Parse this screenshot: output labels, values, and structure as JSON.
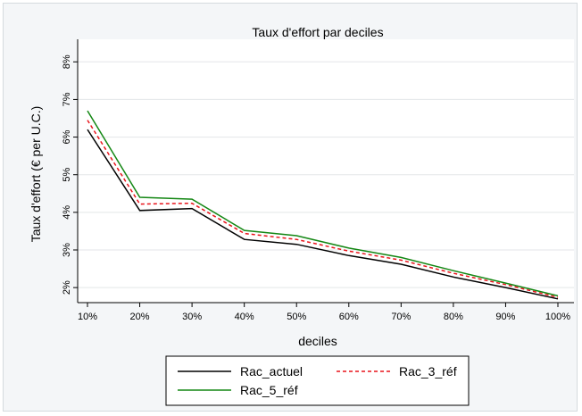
{
  "chart_data": {
    "type": "line",
    "title": "Taux d'effort par deciles",
    "xlabel": "deciles",
    "ylabel": "Taux d'effort (€ per U.C.)",
    "categories": [
      "10%",
      "20%",
      "30%",
      "40%",
      "50%",
      "60%",
      "70%",
      "80%",
      "90%",
      "100%"
    ],
    "yticks": [
      "2%",
      "3%",
      "4%",
      "5%",
      "6%",
      "7%",
      "8%"
    ],
    "ylim": [
      1.6,
      8.6
    ],
    "grid": true,
    "legend_position": "bottom",
    "series": [
      {
        "name": "Rac_actuel",
        "color": "#000000",
        "dash": "solid",
        "values": [
          6.2,
          4.05,
          4.1,
          3.28,
          3.15,
          2.85,
          2.62,
          2.28,
          2.0,
          1.7
        ]
      },
      {
        "name": "Rac_3_réf",
        "color": "#e8141b",
        "dash": "dashed",
        "values": [
          6.45,
          4.22,
          4.24,
          3.44,
          3.28,
          2.97,
          2.73,
          2.38,
          2.08,
          1.74
        ]
      },
      {
        "name": "Rac_5_réf",
        "color": "#148714",
        "dash": "solid",
        "values": [
          6.7,
          4.4,
          4.35,
          3.52,
          3.38,
          3.05,
          2.8,
          2.45,
          2.12,
          1.78
        ]
      }
    ]
  }
}
